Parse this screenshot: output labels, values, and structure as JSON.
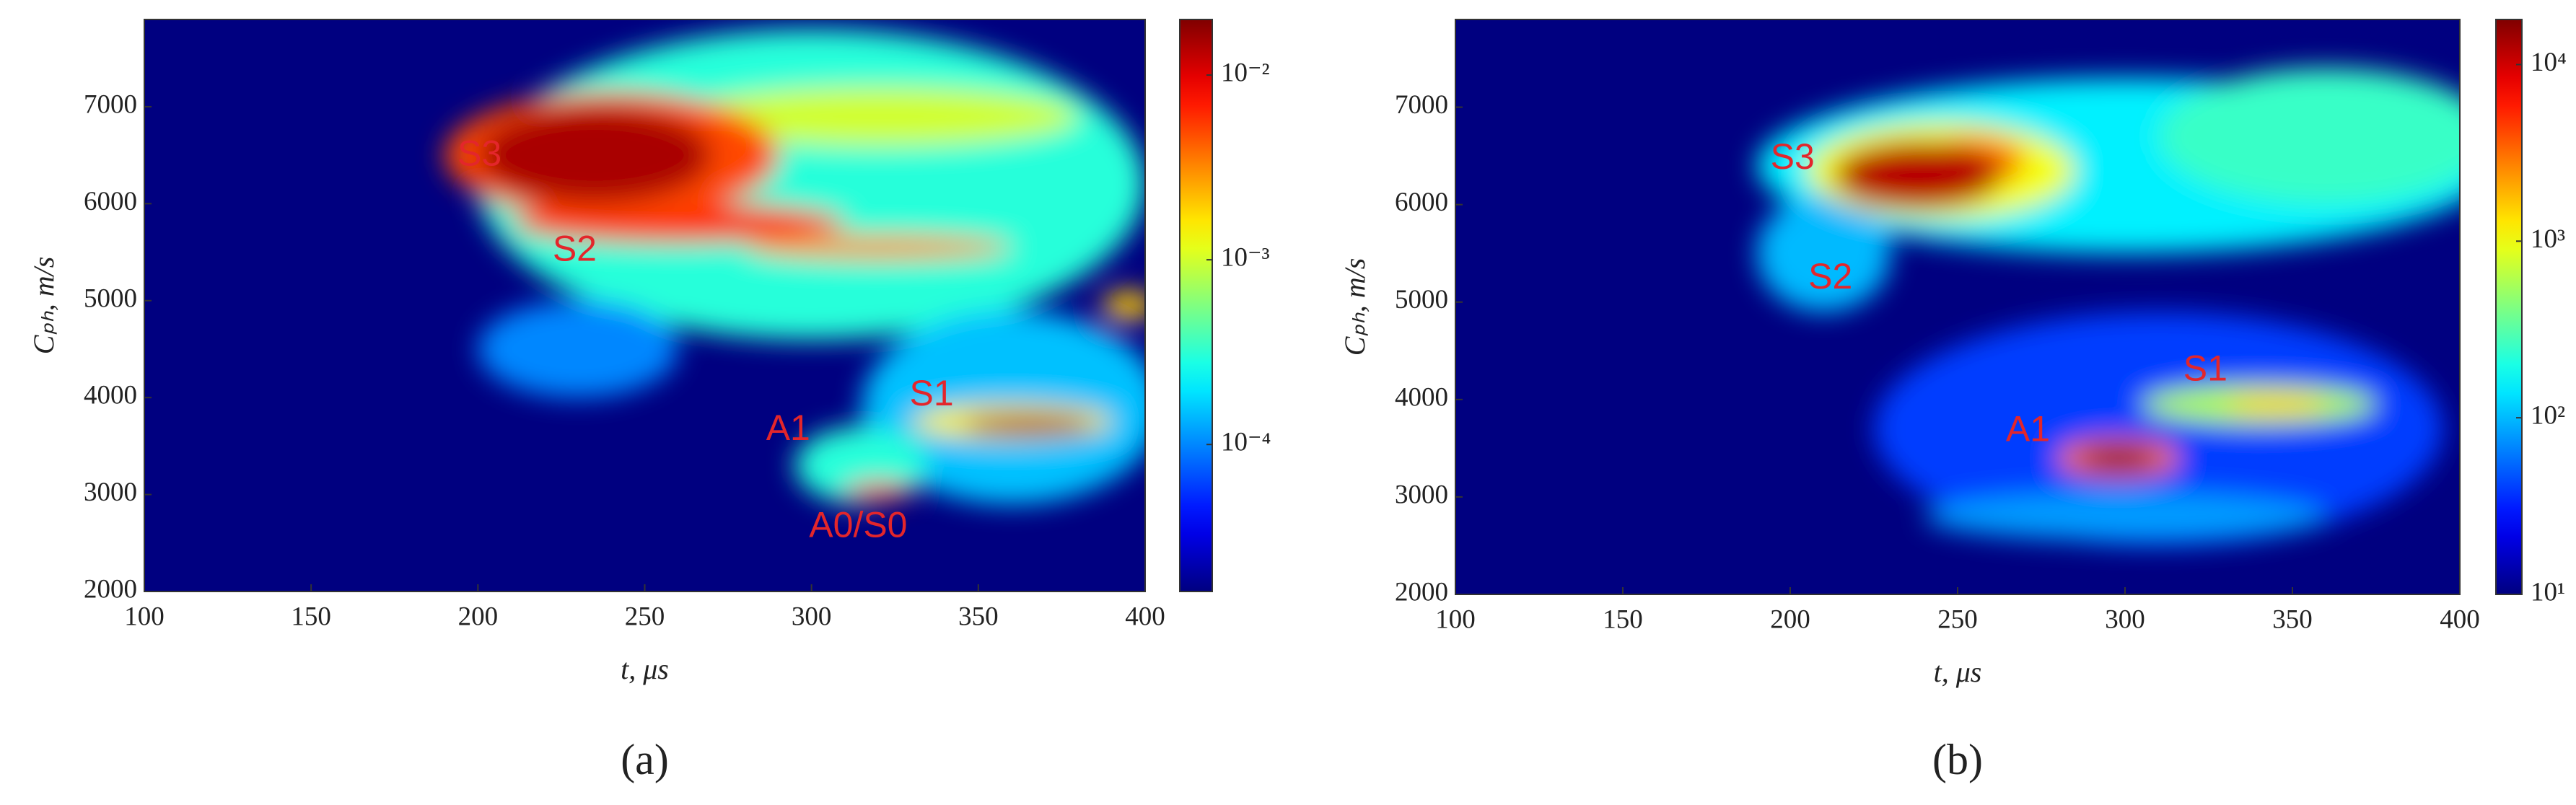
{
  "chart_data": [
    {
      "type": "heatmap",
      "panel_label": "(a)",
      "xlabel": "t, μs",
      "ylabel": "Cₚₕ, m/s",
      "xlim": [
        100,
        400
      ],
      "xticks": [
        100,
        150,
        200,
        250,
        300,
        350,
        400
      ],
      "ylim": [
        2000,
        7900
      ],
      "yticks": [
        2000,
        3000,
        4000,
        5000,
        6000,
        7000
      ],
      "colorbar": {
        "scale": "log",
        "lim": [
          1.6e-05,
          0.02
        ],
        "ticks": [
          {
            "value": 0.01,
            "label": "10⁻²"
          },
          {
            "value": 0.001,
            "label": "10⁻³"
          },
          {
            "value": 0.0001,
            "label": "10⁻⁴"
          }
        ]
      },
      "regions": [
        {
          "x": 300,
          "y": 6200,
          "rx": 100,
          "ry": 1600,
          "value": 0.0003
        },
        {
          "x": 360,
          "y": 3900,
          "rx": 45,
          "ry": 1000,
          "value": 0.00015
        },
        {
          "x": 230,
          "y": 4500,
          "rx": 30,
          "ry": 500,
          "value": 0.0001
        },
        {
          "x": 315,
          "y": 3300,
          "rx": 20,
          "ry": 400,
          "value": 0.0003
        },
        {
          "x": 320,
          "y": 6900,
          "rx": 60,
          "ry": 300,
          "value": 0.001
        },
        {
          "x": 360,
          "y": 3750,
          "rx": 30,
          "ry": 180,
          "value": 0.0015
        },
        {
          "x": 395,
          "y": 4950,
          "rx": 8,
          "ry": 150,
          "value": 0.002
        },
        {
          "x": 320,
          "y": 5550,
          "rx": 40,
          "ry": 120,
          "value": 0.003
        },
        {
          "x": 260,
          "y": 5800,
          "rx": 50,
          "ry": 200,
          "value": 0.006
        },
        {
          "x": 240,
          "y": 6500,
          "rx": 50,
          "ry": 650,
          "value": 0.005
        },
        {
          "x": 235,
          "y": 6500,
          "rx": 35,
          "ry": 500,
          "value": 0.015
        },
        {
          "x": 365,
          "y": 3720,
          "rx": 20,
          "ry": 100,
          "value": 0.015
        },
        {
          "x": 320,
          "y": 3030,
          "rx": 10,
          "ry": 90,
          "value": 0.008
        }
      ],
      "annotations": [
        {
          "text": "S3",
          "x": 200.5,
          "y": 6493
        },
        {
          "text": "S2",
          "x": 229,
          "y": 5510
        },
        {
          "text": "S1",
          "x": 336,
          "y": 4017
        },
        {
          "text": "A1",
          "x": 293,
          "y": 3660
        },
        {
          "text": "A0/S0",
          "x": 314,
          "y": 2660
        }
      ]
    },
    {
      "type": "heatmap",
      "panel_label": "(b)",
      "xlabel": "t, μs",
      "ylabel": "Cₚₕ, m/s",
      "xlim": [
        100,
        400
      ],
      "xticks": [
        100,
        150,
        200,
        250,
        300,
        350,
        400
      ],
      "ylim": [
        2000,
        7900
      ],
      "yticks": [
        2000,
        3000,
        4000,
        5000,
        6000,
        7000
      ],
      "colorbar": {
        "scale": "log",
        "lim": [
          10,
          18000
        ],
        "ticks": [
          {
            "value": 10000,
            "label": "10⁴"
          },
          {
            "value": 1000,
            "label": "10³"
          },
          {
            "value": 100,
            "label": "10²"
          },
          {
            "value": 10,
            "label": "10¹"
          }
        ]
      },
      "regions": [
        {
          "x": 310,
          "y": 3700,
          "rx": 85,
          "ry": 1200,
          "value": 40
        },
        {
          "x": 300,
          "y": 2800,
          "rx": 60,
          "ry": 250,
          "value": 80
        },
        {
          "x": 300,
          "y": 6400,
          "rx": 110,
          "ry": 900,
          "value": 150
        },
        {
          "x": 210,
          "y": 5500,
          "rx": 20,
          "ry": 600,
          "value": 100
        },
        {
          "x": 360,
          "y": 6700,
          "rx": 50,
          "ry": 700,
          "value": 250
        },
        {
          "x": 340,
          "y": 3950,
          "rx": 35,
          "ry": 200,
          "value": 600
        },
        {
          "x": 345,
          "y": 3950,
          "rx": 15,
          "ry": 100,
          "value": 1500
        },
        {
          "x": 245,
          "y": 6350,
          "rx": 40,
          "ry": 500,
          "value": 1000
        },
        {
          "x": 255,
          "y": 6450,
          "rx": 15,
          "ry": 250,
          "value": 3000
        },
        {
          "x": 238,
          "y": 6300,
          "rx": 25,
          "ry": 350,
          "value": 12000
        },
        {
          "x": 298,
          "y": 3400,
          "rx": 18,
          "ry": 200,
          "value": 3000
        },
        {
          "x": 298,
          "y": 3400,
          "rx": 12,
          "ry": 130,
          "value": 15000
        }
      ],
      "annotations": [
        {
          "text": "S3",
          "x": 200.7,
          "y": 6467
        },
        {
          "text": "S2",
          "x": 212,
          "y": 5237
        },
        {
          "text": "S1",
          "x": 324,
          "y": 4293
        },
        {
          "text": "A1",
          "x": 271,
          "y": 3670
        }
      ]
    }
  ]
}
